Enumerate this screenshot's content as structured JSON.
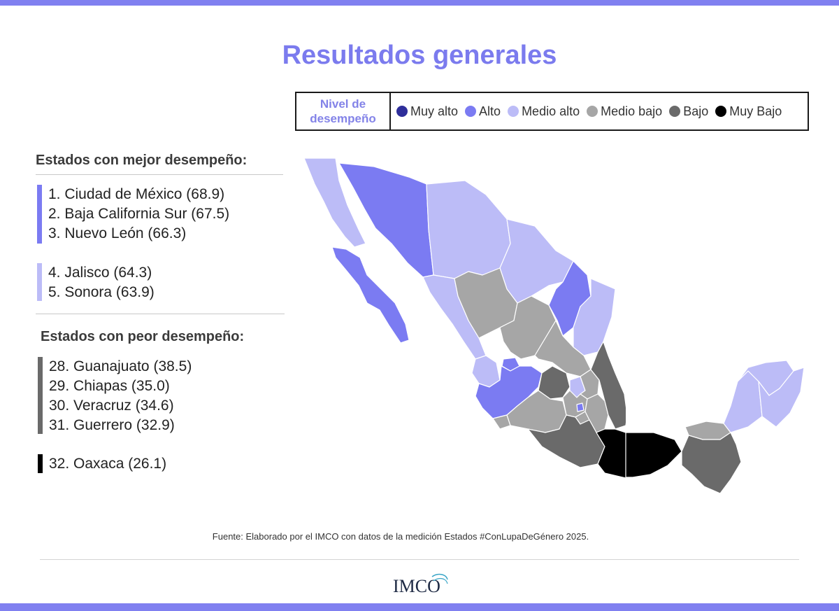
{
  "title": "Resultados generales",
  "legend": {
    "title_line1": "Nivel de",
    "title_line2": "desempeño",
    "items": [
      {
        "label": "Muy alto",
        "color": "#2e2e9a"
      },
      {
        "label": "Alto",
        "color": "#7b7bf2"
      },
      {
        "label": "Medio alto",
        "color": "#bcbcf7"
      },
      {
        "label": "Medio bajo",
        "color": "#a6a6a6"
      },
      {
        "label": "Bajo",
        "color": "#6a6a6a"
      },
      {
        "label": "Muy Bajo",
        "color": "#000000"
      }
    ]
  },
  "best": {
    "heading": "Estados con mejor desempeño:",
    "groups": [
      {
        "color": "#7b7bf2",
        "items": [
          "1. Ciudad de México (68.9)",
          "2. Baja California Sur (67.5)",
          "3. Nuevo León (66.3)"
        ]
      },
      {
        "color": "#bcbcf7",
        "items": [
          "4. Jalisco (64.3)",
          "5. Sonora (63.9)"
        ]
      }
    ]
  },
  "worst": {
    "heading": "Estados con peor desempeño:",
    "groups": [
      {
        "color": "#6a6a6a",
        "items": [
          "28. Guanajuato (38.5)",
          "29. Chiapas (35.0)",
          "30. Veracruz (34.6)",
          "31. Guerrero (32.9)"
        ]
      },
      {
        "color": "#000000",
        "items": [
          "32. Oaxaca (26.1)"
        ]
      }
    ]
  },
  "source": "Fuente: Elaborado por el IMCO con datos de la medición Estados #ConLupaDeGénero 2025.",
  "logo": "IMCO"
}
